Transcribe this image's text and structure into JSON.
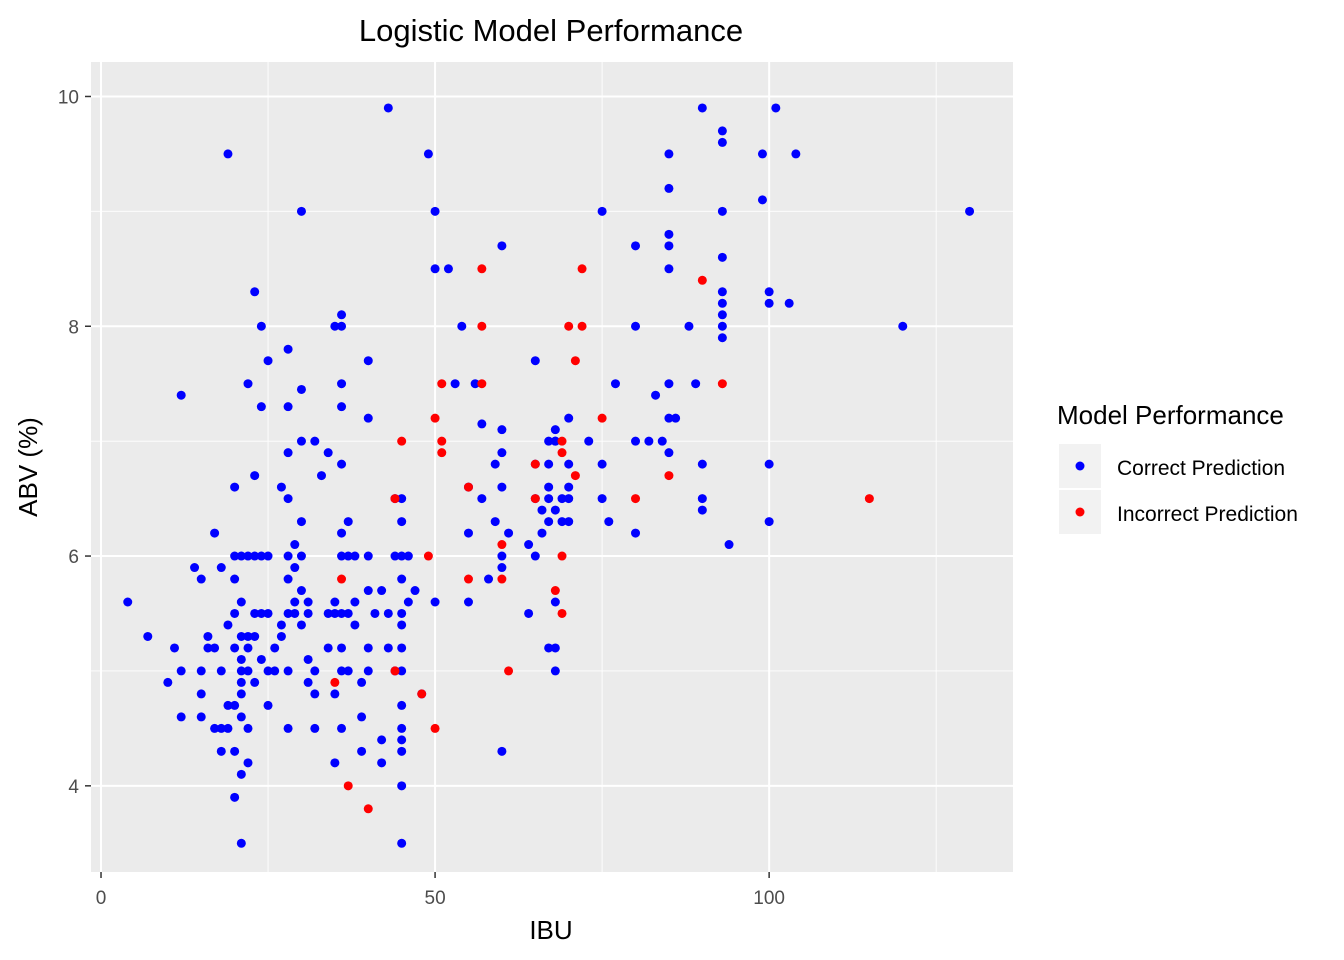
{
  "chart_data": {
    "type": "scatter",
    "title": "Logistic Model Performance",
    "xlabel": "IBU",
    "ylabel": "ABV (%)",
    "xlim": [
      -1.5,
      136.5
    ],
    "ylim": [
      3.25,
      10.3
    ],
    "x_ticks": [
      0,
      50,
      100
    ],
    "y_ticks": [
      4,
      6,
      8,
      10
    ],
    "x_tick_labels": [
      "0",
      "50",
      "100"
    ],
    "y_tick_labels": [
      "4",
      "6",
      "8",
      "10"
    ],
    "grid": true,
    "legend": {
      "title": "Model Performance",
      "position": "right",
      "entries": [
        "Correct Prediction",
        "Incorrect Prediction"
      ]
    },
    "colors": {
      "panel": "#EBEBEB",
      "grid": "#FFFFFF",
      "correct": "#0000FF",
      "incorrect": "#FF0000"
    },
    "series": [
      {
        "name": "Correct Prediction",
        "color": "#0000FF",
        "points": [
          [
            4,
            5.6
          ],
          [
            7,
            5.3
          ],
          [
            10,
            4.9
          ],
          [
            11,
            5.2
          ],
          [
            12,
            5.0
          ],
          [
            12,
            4.6
          ],
          [
            12,
            7.4
          ],
          [
            14,
            5.9
          ],
          [
            15,
            5.8
          ],
          [
            15,
            5.0
          ],
          [
            15,
            4.8
          ],
          [
            15,
            4.6
          ],
          [
            16,
            5.2
          ],
          [
            16,
            5.3
          ],
          [
            17,
            4.5
          ],
          [
            17,
            5.2
          ],
          [
            17,
            6.2
          ],
          [
            18,
            5.0
          ],
          [
            18,
            4.5
          ],
          [
            18,
            4.3
          ],
          [
            18,
            5.9
          ],
          [
            19,
            4.5
          ],
          [
            19,
            4.7
          ],
          [
            19,
            5.4
          ],
          [
            19,
            9.5
          ],
          [
            20,
            5.2
          ],
          [
            20,
            5.5
          ],
          [
            20,
            5.8
          ],
          [
            20,
            6.0
          ],
          [
            20,
            6.6
          ],
          [
            20,
            4.7
          ],
          [
            20,
            3.9
          ],
          [
            20,
            4.3
          ],
          [
            21,
            6.0
          ],
          [
            21,
            5.0
          ],
          [
            21,
            4.9
          ],
          [
            21,
            4.8
          ],
          [
            21,
            4.6
          ],
          [
            21,
            4.1
          ],
          [
            21,
            3.5
          ],
          [
            21,
            5.3
          ],
          [
            21,
            5.6
          ],
          [
            21,
            5.1
          ],
          [
            22,
            4.2
          ],
          [
            22,
            6.0
          ],
          [
            22,
            5.3
          ],
          [
            22,
            5.0
          ],
          [
            22,
            4.5
          ],
          [
            22,
            5.2
          ],
          [
            22,
            7.5
          ],
          [
            23,
            5.5
          ],
          [
            23,
            8.3
          ],
          [
            23,
            6.7
          ],
          [
            23,
            4.9
          ],
          [
            23,
            5.3
          ],
          [
            23,
            6.0
          ],
          [
            24,
            5.1
          ],
          [
            24,
            7.3
          ],
          [
            24,
            8.0
          ],
          [
            24,
            6.0
          ],
          [
            24,
            5.5
          ],
          [
            25,
            7.7
          ],
          [
            25,
            5.0
          ],
          [
            25,
            4.7
          ],
          [
            25,
            5.5
          ],
          [
            25,
            6.0
          ],
          [
            26,
            5.2
          ],
          [
            26,
            5.0
          ],
          [
            27,
            5.3
          ],
          [
            27,
            5.4
          ],
          [
            27,
            6.6
          ],
          [
            28,
            5.0
          ],
          [
            28,
            5.5
          ],
          [
            28,
            5.8
          ],
          [
            28,
            6.0
          ],
          [
            28,
            6.5
          ],
          [
            28,
            6.9
          ],
          [
            28,
            7.3
          ],
          [
            28,
            7.8
          ],
          [
            28,
            4.5
          ],
          [
            29,
            5.9
          ],
          [
            29,
            5.5
          ],
          [
            29,
            6.1
          ],
          [
            29,
            5.6
          ],
          [
            30,
            7.0
          ],
          [
            30,
            7.45
          ],
          [
            30,
            9.0
          ],
          [
            30,
            6.3
          ],
          [
            30,
            6.0
          ],
          [
            30,
            5.7
          ],
          [
            30,
            5.4
          ],
          [
            31,
            4.9
          ],
          [
            31,
            5.6
          ],
          [
            31,
            5.1
          ],
          [
            31,
            5.5
          ],
          [
            32,
            5.0
          ],
          [
            32,
            4.8
          ],
          [
            32,
            4.5
          ],
          [
            32,
            7.0
          ],
          [
            33,
            6.7
          ],
          [
            34,
            6.9
          ],
          [
            34,
            5.5
          ],
          [
            34,
            5.2
          ],
          [
            35,
            8.0
          ],
          [
            35,
            5.5
          ],
          [
            35,
            5.6
          ],
          [
            35,
            4.8
          ],
          [
            35,
            4.2
          ],
          [
            36,
            5.0
          ],
          [
            36,
            4.5
          ],
          [
            36,
            5.2
          ],
          [
            36,
            5.5
          ],
          [
            36,
            6.0
          ],
          [
            36,
            6.2
          ],
          [
            36,
            6.8
          ],
          [
            36,
            7.3
          ],
          [
            36,
            7.5
          ],
          [
            36,
            8.0
          ],
          [
            36,
            8.1
          ],
          [
            37,
            5.0
          ],
          [
            37,
            5.5
          ],
          [
            37,
            6.0
          ],
          [
            37,
            6.3
          ],
          [
            38,
            5.4
          ],
          [
            38,
            5.6
          ],
          [
            38,
            6.0
          ],
          [
            39,
            4.9
          ],
          [
            39,
            4.6
          ],
          [
            39,
            4.3
          ],
          [
            40,
            5.2
          ],
          [
            40,
            5.0
          ],
          [
            40,
            5.7
          ],
          [
            40,
            6.0
          ],
          [
            40,
            7.2
          ],
          [
            40,
            7.7
          ],
          [
            41,
            5.5
          ],
          [
            42,
            4.4
          ],
          [
            42,
            4.2
          ],
          [
            42,
            5.7
          ],
          [
            43,
            5.5
          ],
          [
            43,
            5.2
          ],
          [
            43,
            9.9
          ],
          [
            44,
            6.5
          ],
          [
            44,
            6.0
          ],
          [
            44,
            5.0
          ],
          [
            45,
            6.5
          ],
          [
            45,
            6.3
          ],
          [
            45,
            6.0
          ],
          [
            45,
            5.8
          ],
          [
            45,
            5.5
          ],
          [
            45,
            5.4
          ],
          [
            45,
            5.2
          ],
          [
            45,
            5.0
          ],
          [
            45,
            4.7
          ],
          [
            45,
            4.5
          ],
          [
            45,
            4.4
          ],
          [
            45,
            4.3
          ],
          [
            45,
            4.0
          ],
          [
            45,
            3.5
          ],
          [
            46,
            5.6
          ],
          [
            46,
            6.0
          ],
          [
            47,
            5.7
          ],
          [
            48,
            4.8
          ],
          [
            49,
            9.5
          ],
          [
            50,
            9.0
          ],
          [
            50,
            8.5
          ],
          [
            50,
            5.6
          ],
          [
            52,
            8.5
          ],
          [
            53,
            7.5
          ],
          [
            54,
            8.0
          ],
          [
            55,
            5.6
          ],
          [
            55,
            6.6
          ],
          [
            55,
            6.2
          ],
          [
            56,
            7.5
          ],
          [
            57,
            7.15
          ],
          [
            57,
            6.5
          ],
          [
            58,
            5.8
          ],
          [
            59,
            6.3
          ],
          [
            59,
            6.8
          ],
          [
            60,
            8.7
          ],
          [
            60,
            7.1
          ],
          [
            60,
            6.9
          ],
          [
            60,
            6.6
          ],
          [
            60,
            6.0
          ],
          [
            60,
            5.9
          ],
          [
            60,
            4.3
          ],
          [
            61,
            6.2
          ],
          [
            64,
            6.1
          ],
          [
            64,
            5.5
          ],
          [
            65,
            7.7
          ],
          [
            65,
            6.8
          ],
          [
            65,
            6.5
          ],
          [
            65,
            6.0
          ],
          [
            66,
            6.2
          ],
          [
            66,
            6.4
          ],
          [
            67,
            7.0
          ],
          [
            67,
            5.2
          ],
          [
            67,
            6.8
          ],
          [
            67,
            6.6
          ],
          [
            67,
            6.5
          ],
          [
            67,
            6.3
          ],
          [
            68,
            7.0
          ],
          [
            68,
            7.1
          ],
          [
            68,
            5.0
          ],
          [
            68,
            5.6
          ],
          [
            68,
            6.4
          ],
          [
            68,
            7.0
          ],
          [
            68,
            5.2
          ],
          [
            69,
            6.3
          ],
          [
            69,
            6.5
          ],
          [
            70,
            7.2
          ],
          [
            70,
            6.6
          ],
          [
            70,
            6.3
          ],
          [
            70,
            6.5
          ],
          [
            70,
            6.8
          ],
          [
            73,
            7.0
          ],
          [
            75,
            6.5
          ],
          [
            75,
            6.8
          ],
          [
            75,
            9.0
          ],
          [
            76,
            6.3
          ],
          [
            77,
            7.5
          ],
          [
            80,
            8.7
          ],
          [
            80,
            8.0
          ],
          [
            80,
            6.2
          ],
          [
            80,
            7.0
          ],
          [
            82,
            7.0
          ],
          [
            83,
            7.4
          ],
          [
            84,
            7.0
          ],
          [
            85,
            7.5
          ],
          [
            85,
            6.9
          ],
          [
            85,
            7.2
          ],
          [
            85,
            8.5
          ],
          [
            85,
            8.7
          ],
          [
            85,
            8.8
          ],
          [
            85,
            9.2
          ],
          [
            85,
            9.5
          ],
          [
            86,
            7.2
          ],
          [
            88,
            8.0
          ],
          [
            89,
            7.5
          ],
          [
            90,
            6.4
          ],
          [
            90,
            6.5
          ],
          [
            90,
            6.8
          ],
          [
            90,
            9.9
          ],
          [
            93,
            9.7
          ],
          [
            93,
            9.6
          ],
          [
            93,
            8.6
          ],
          [
            93,
            8.3
          ],
          [
            93,
            8.2
          ],
          [
            93,
            8.1
          ],
          [
            93,
            8.0
          ],
          [
            93,
            7.9
          ],
          [
            93,
            9.0
          ],
          [
            94,
            6.1
          ],
          [
            99,
            9.5
          ],
          [
            99,
            9.1
          ],
          [
            100,
            6.8
          ],
          [
            100,
            6.3
          ],
          [
            100,
            8.3
          ],
          [
            100,
            8.2
          ],
          [
            101,
            9.9
          ],
          [
            103,
            8.2
          ],
          [
            104,
            9.5
          ],
          [
            120,
            8.0
          ],
          [
            130,
            9.0
          ]
        ]
      },
      {
        "name": "Incorrect Prediction",
        "color": "#FF0000",
        "points": [
          [
            35,
            4.9
          ],
          [
            36,
            5.8
          ],
          [
            37,
            4.0
          ],
          [
            40,
            3.8
          ],
          [
            44,
            6.5
          ],
          [
            44,
            5.0
          ],
          [
            45,
            7.0
          ],
          [
            48,
            4.8
          ],
          [
            49,
            6.0
          ],
          [
            50,
            7.2
          ],
          [
            50,
            4.5
          ],
          [
            51,
            7.5
          ],
          [
            51,
            7.0
          ],
          [
            51,
            6.9
          ],
          [
            55,
            6.6
          ],
          [
            55,
            5.8
          ],
          [
            57,
            8.5
          ],
          [
            57,
            8.0
          ],
          [
            57,
            7.5
          ],
          [
            60,
            6.1
          ],
          [
            60,
            5.8
          ],
          [
            61,
            5.0
          ],
          [
            65,
            6.8
          ],
          [
            65,
            6.5
          ],
          [
            68,
            5.7
          ],
          [
            69,
            7.0
          ],
          [
            69,
            6.9
          ],
          [
            69,
            6.0
          ],
          [
            69,
            5.5
          ],
          [
            70,
            8.0
          ],
          [
            71,
            7.7
          ],
          [
            71,
            6.7
          ],
          [
            72,
            8.5
          ],
          [
            72,
            8.0
          ],
          [
            75,
            7.2
          ],
          [
            80,
            6.5
          ],
          [
            85,
            6.7
          ],
          [
            90,
            8.4
          ],
          [
            93,
            7.5
          ],
          [
            115,
            6.5
          ]
        ]
      }
    ]
  }
}
